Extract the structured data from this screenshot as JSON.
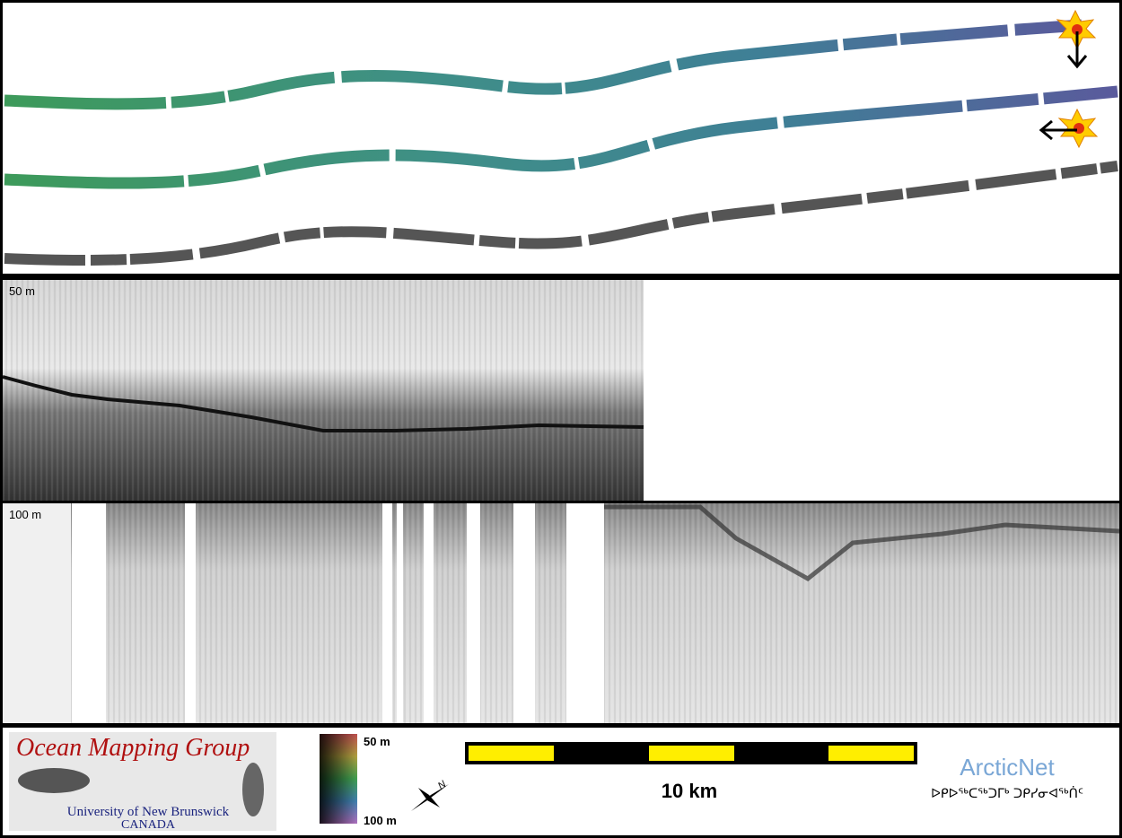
{
  "swath_panel": {},
  "profiles": {
    "upper": {
      "depth_label": "50 m"
    },
    "lower": {
      "depth_label": "100 m"
    }
  },
  "footer": {
    "logo": {
      "title": "Ocean Mapping Group",
      "university": "University of New Brunswick",
      "country": "CANADA"
    },
    "depth_legend": {
      "top": "50 m",
      "bottom": "100 m"
    },
    "compass": {
      "label": "N"
    },
    "scale_bar": {
      "label": "10 km"
    },
    "partner": {
      "name": "ArcticNet",
      "name_inuktitut": "ᐅᑭᐅᖅᑕᖅᑐᒥᒃ ᑐᑭᓯᓂᐊᖅᑏᑦ"
    }
  }
}
